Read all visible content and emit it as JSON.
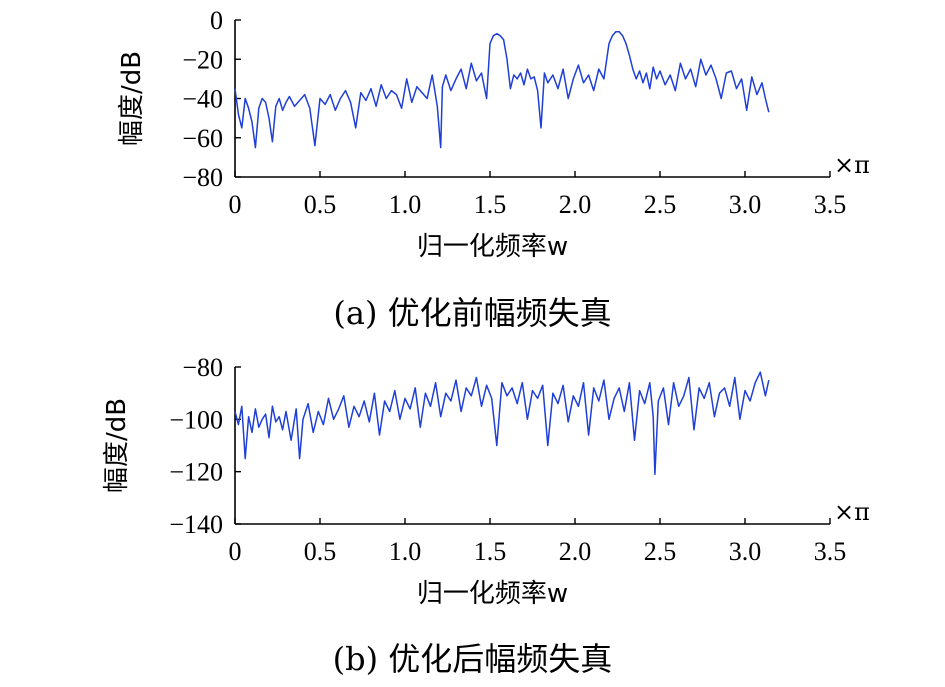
{
  "chart_data": [
    {
      "type": "line",
      "caption": "(a) 优化前幅频失真",
      "xlabel": "归一化频率w",
      "ylabel": "幅度/dB",
      "x_unit": "×π",
      "xlim": [
        0,
        3.5
      ],
      "ylim": [
        -80,
        0
      ],
      "xticks": [
        0,
        0.5,
        1.0,
        1.5,
        2.0,
        2.5,
        3.0,
        3.5
      ],
      "xtick_labels": [
        "0",
        "0.5",
        "1.0",
        "1.5",
        "2.0",
        "2.5",
        "3.0",
        "3.5"
      ],
      "yticks": [
        0,
        -20,
        -40,
        -60,
        -80
      ],
      "ytick_labels": [
        "0",
        "−20",
        "−40",
        "−60",
        "−80"
      ],
      "grid": false,
      "color": "#1f3fd6",
      "series": [
        {
          "x": [
            0,
            0.02,
            0.04,
            0.06,
            0.08,
            0.1,
            0.12,
            0.14,
            0.16,
            0.18,
            0.2,
            0.22,
            0.24,
            0.26,
            0.28,
            0.3,
            0.32,
            0.35,
            0.38,
            0.41,
            0.44,
            0.47,
            0.5,
            0.53,
            0.56,
            0.59,
            0.62,
            0.65,
            0.68,
            0.71,
            0.74,
            0.77,
            0.8,
            0.83,
            0.86,
            0.89,
            0.92,
            0.95,
            0.98,
            1.01,
            1.04,
            1.07,
            1.1,
            1.13,
            1.16,
            1.19,
            1.21,
            1.22,
            1.24,
            1.27,
            1.3,
            1.33,
            1.36,
            1.39,
            1.42,
            1.45,
            1.48,
            1.5,
            1.52,
            1.54,
            1.56,
            1.58,
            1.6,
            1.62,
            1.64,
            1.66,
            1.68,
            1.7,
            1.72,
            1.74,
            1.76,
            1.78,
            1.8,
            1.82,
            1.84,
            1.87,
            1.9,
            1.93,
            1.96,
            1.99,
            2.02,
            2.05,
            2.08,
            2.11,
            2.14,
            2.17,
            2.2,
            2.22,
            2.24,
            2.26,
            2.28,
            2.3,
            2.32,
            2.34,
            2.36,
            2.38,
            2.4,
            2.42,
            2.44,
            2.46,
            2.48,
            2.5,
            2.53,
            2.56,
            2.59,
            2.62,
            2.65,
            2.68,
            2.71,
            2.74,
            2.77,
            2.8,
            2.83,
            2.86,
            2.89,
            2.92,
            2.95,
            2.98,
            3.01,
            3.04,
            3.07,
            3.1,
            3.12,
            3.14
          ],
          "y": [
            -35,
            -48,
            -55,
            -40,
            -45,
            -52,
            -65,
            -45,
            -40,
            -42,
            -50,
            -62,
            -44,
            -40,
            -46,
            -42,
            -39,
            -44,
            -41,
            -38,
            -45,
            -64,
            -40,
            -43,
            -38,
            -46,
            -40,
            -36,
            -42,
            -55,
            -37,
            -41,
            -35,
            -44,
            -33,
            -40,
            -36,
            -38,
            -45,
            -30,
            -42,
            -34,
            -37,
            -40,
            -28,
            -44,
            -65,
            -34,
            -28,
            -36,
            -30,
            -25,
            -35,
            -22,
            -31,
            -27,
            -40,
            -12,
            -8,
            -7,
            -8,
            -10,
            -20,
            -35,
            -28,
            -30,
            -27,
            -33,
            -25,
            -30,
            -29,
            -36,
            -55,
            -27,
            -32,
            -28,
            -35,
            -25,
            -40,
            -30,
            -23,
            -32,
            -28,
            -36,
            -25,
            -30,
            -12,
            -8,
            -6,
            -6,
            -8,
            -12,
            -18,
            -25,
            -30,
            -26,
            -32,
            -27,
            -35,
            -24,
            -30,
            -26,
            -33,
            -28,
            -36,
            -22,
            -30,
            -25,
            -34,
            -20,
            -28,
            -23,
            -30,
            -40,
            -27,
            -26,
            -35,
            -30,
            -46,
            -29,
            -38,
            -32,
            -40,
            -47
          ]
        }
      ]
    },
    {
      "type": "line",
      "caption": "(b) 优化后幅频失真",
      "xlabel": "归一化频率w",
      "ylabel": "幅度/dB",
      "x_unit": "×π",
      "xlim": [
        0,
        3.5
      ],
      "ylim": [
        -140,
        -80
      ],
      "xticks": [
        0,
        0.5,
        1.0,
        1.5,
        2.0,
        2.5,
        3.0,
        3.5
      ],
      "xtick_labels": [
        "0",
        "0.5",
        "1.0",
        "1.5",
        "2.0",
        "2.5",
        "3.0",
        "3.5"
      ],
      "yticks": [
        -80,
        -100,
        -120,
        -140
      ],
      "ytick_labels": [
        "−80",
        "−100",
        "−120",
        "−140"
      ],
      "grid": false,
      "color": "#1f3fd6",
      "series": [
        {
          "x": [
            0,
            0.02,
            0.04,
            0.06,
            0.08,
            0.1,
            0.12,
            0.14,
            0.16,
            0.18,
            0.2,
            0.22,
            0.24,
            0.26,
            0.28,
            0.3,
            0.33,
            0.36,
            0.38,
            0.4,
            0.43,
            0.46,
            0.49,
            0.52,
            0.55,
            0.58,
            0.61,
            0.64,
            0.67,
            0.7,
            0.73,
            0.76,
            0.79,
            0.82,
            0.85,
            0.88,
            0.91,
            0.94,
            0.97,
            1.0,
            1.03,
            1.06,
            1.09,
            1.12,
            1.15,
            1.18,
            1.21,
            1.24,
            1.27,
            1.3,
            1.33,
            1.36,
            1.39,
            1.42,
            1.45,
            1.48,
            1.51,
            1.54,
            1.57,
            1.6,
            1.63,
            1.66,
            1.69,
            1.72,
            1.75,
            1.78,
            1.81,
            1.84,
            1.87,
            1.9,
            1.93,
            1.96,
            1.99,
            2.02,
            2.05,
            2.08,
            2.11,
            2.14,
            2.17,
            2.2,
            2.23,
            2.26,
            2.29,
            2.32,
            2.35,
            2.38,
            2.41,
            2.44,
            2.46,
            2.47,
            2.49,
            2.52,
            2.55,
            2.58,
            2.61,
            2.64,
            2.67,
            2.7,
            2.73,
            2.76,
            2.79,
            2.82,
            2.85,
            2.88,
            2.91,
            2.94,
            2.97,
            3.0,
            3.03,
            3.06,
            3.09,
            3.12,
            3.14
          ],
          "y": [
            -97,
            -102,
            -95,
            -115,
            -99,
            -105,
            -96,
            -103,
            -100,
            -98,
            -107,
            -95,
            -101,
            -99,
            -104,
            -97,
            -108,
            -96,
            -115,
            -100,
            -94,
            -105,
            -97,
            -102,
            -92,
            -100,
            -96,
            -91,
            -103,
            -95,
            -99,
            -93,
            -101,
            -90,
            -106,
            -93,
            -97,
            -89,
            -100,
            -92,
            -96,
            -88,
            -103,
            -90,
            -95,
            -86,
            -99,
            -90,
            -93,
            -85,
            -97,
            -88,
            -91,
            -84,
            -95,
            -87,
            -92,
            -110,
            -86,
            -91,
            -88,
            -94,
            -86,
            -100,
            -89,
            -92,
            -87,
            -110,
            -90,
            -94,
            -87,
            -101,
            -91,
            -95,
            -86,
            -106,
            -88,
            -93,
            -85,
            -100,
            -92,
            -88,
            -97,
            -86,
            -108,
            -89,
            -94,
            -86,
            -99,
            -121,
            -93,
            -88,
            -102,
            -86,
            -95,
            -91,
            -84,
            -104,
            -88,
            -92,
            -86,
            -99,
            -90,
            -88,
            -95,
            -84,
            -100,
            -89,
            -93,
            -86,
            -82,
            -91,
            -85
          ]
        }
      ]
    }
  ]
}
